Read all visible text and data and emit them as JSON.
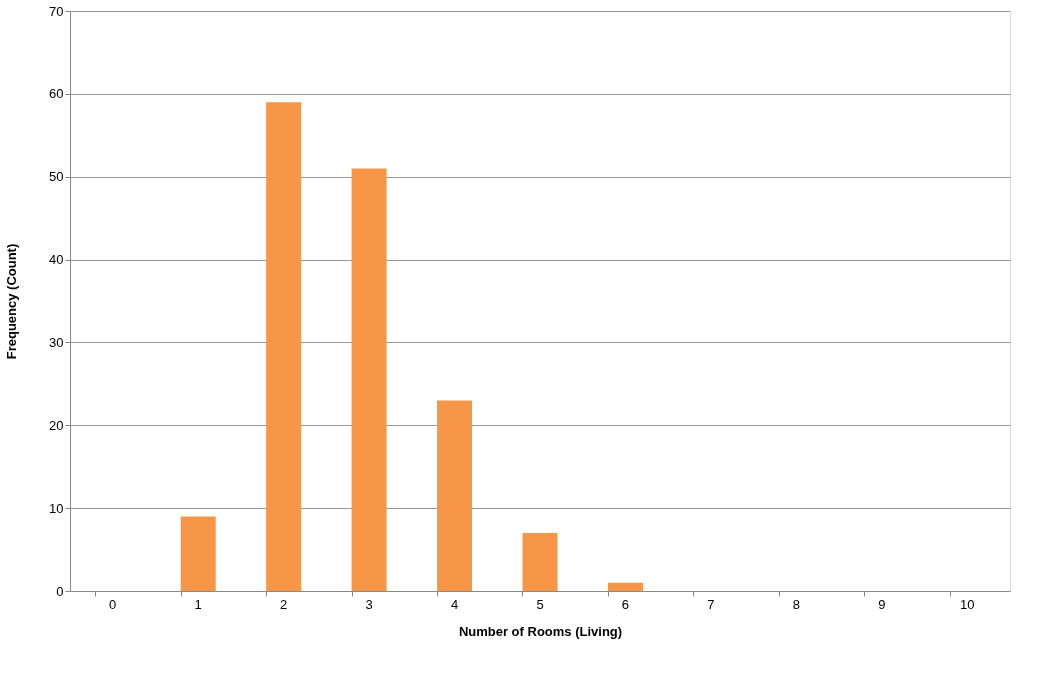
{
  "chart_data": {
    "type": "bar",
    "xlabel": "Number of Rooms (Living)",
    "ylabel": "Frequency (Count)",
    "categories": [
      "0",
      "1",
      "2",
      "3",
      "4",
      "5",
      "6",
      "7",
      "8",
      "9",
      "10"
    ],
    "values": [
      0,
      9,
      59,
      51,
      23,
      7,
      1,
      0,
      0,
      0,
      0
    ],
    "color": "#f79646",
    "ylim": [
      0,
      70
    ],
    "yticks": [
      0,
      10,
      20,
      30,
      40,
      50,
      60,
      70
    ],
    "grid": "y"
  }
}
